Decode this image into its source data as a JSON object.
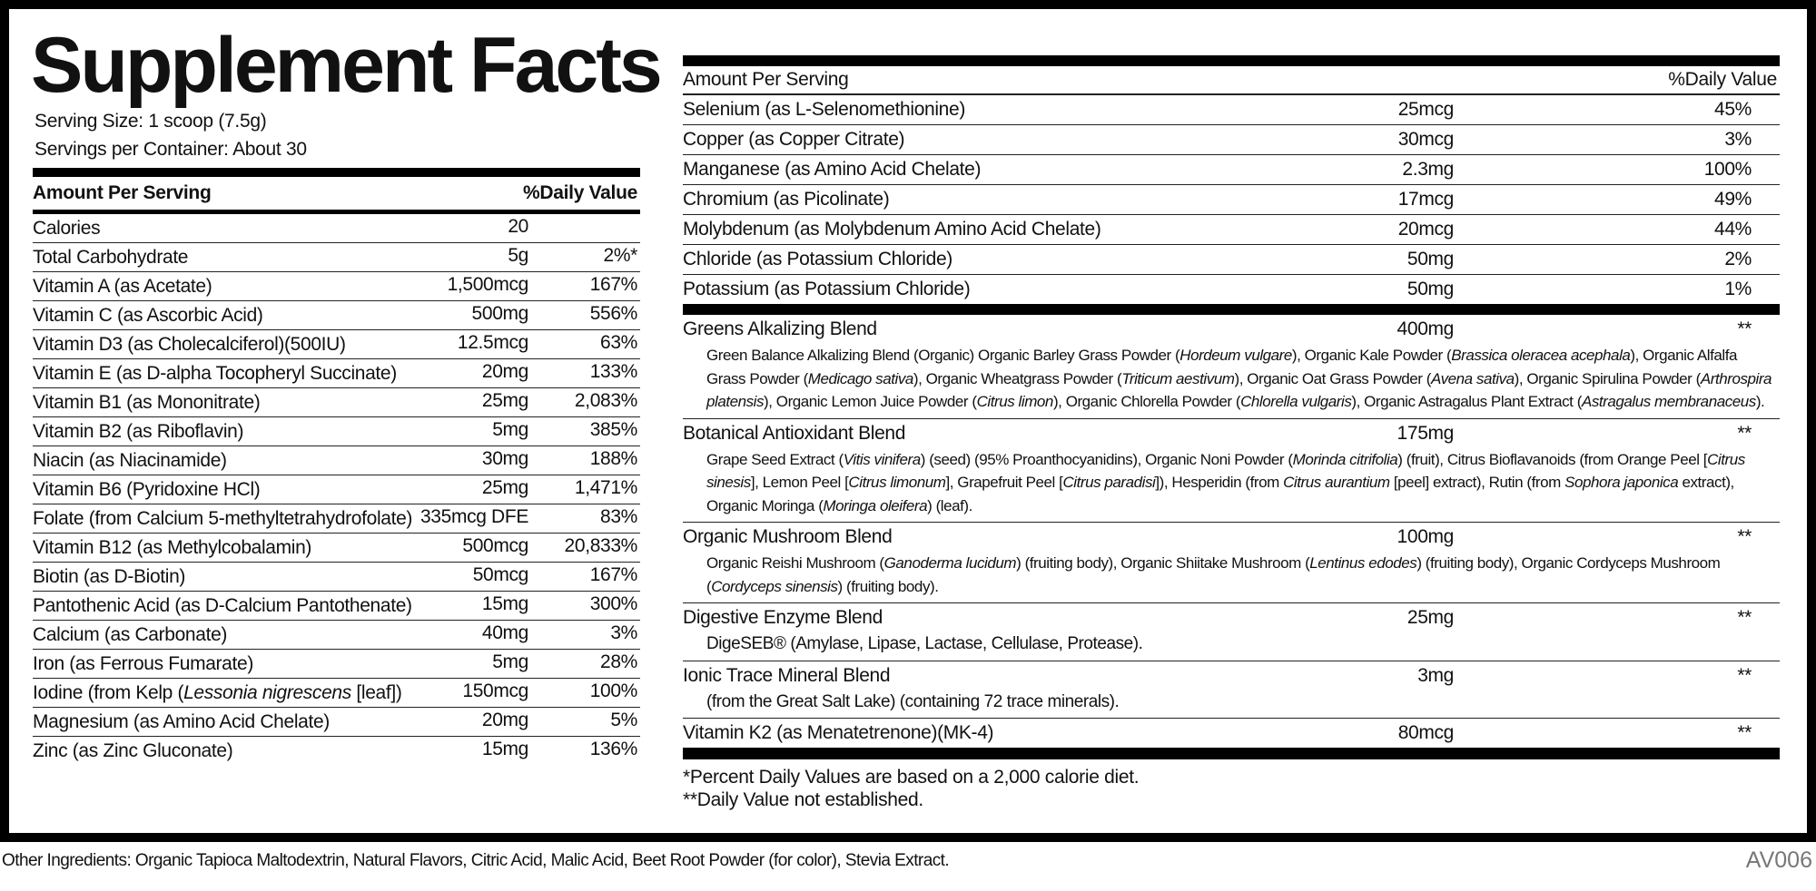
{
  "title": "Supplement Facts",
  "serving_size": "Serving Size: 1 scoop (7.5g)",
  "servings_per_container": "Servings per Container: About 30",
  "left_table": {
    "header": [
      "Amount Per Serving",
      "%Daily Value"
    ],
    "rows": [
      {
        "name": "Calories",
        "amount": "20"
      },
      {
        "name": "Total Carbohydrate",
        "amount": "5g",
        "dv": "2%*"
      },
      {
        "name": "Vitamin A (as Acetate)",
        "amount": "1,500mcg",
        "dv": "167%"
      },
      {
        "name": "Vitamin C (as Ascorbic Acid)",
        "amount": "500mg",
        "dv": "556%"
      },
      {
        "name": "Vitamin D3 (as Cholecalciferol)(500IU)",
        "amount": "12.5mcg",
        "dv": "63%"
      },
      {
        "name": "Vitamin E (as D-alpha Tocopheryl Succinate)",
        "amount": "20mg",
        "dv": "133%"
      },
      {
        "name": "Vitamin B1 (as Mononitrate)",
        "amount": "25mg",
        "dv": "2,083%"
      },
      {
        "name": "Vitamin B2 (as Riboflavin)",
        "amount": "5mg",
        "dv": "385%"
      },
      {
        "name": "Niacin (as Niacinamide)",
        "amount": "30mg",
        "dv": "188%"
      },
      {
        "name": "Vitamin B6 (Pyridoxine HCl)",
        "amount": "25mg",
        "dv": "1,471%"
      },
      {
        "name": "Folate (from Calcium 5-methyltetrahydrofolate)",
        "amount": "335mcg DFE",
        "dv": "83%"
      },
      {
        "name": "Vitamin B12 (as Methylcobalamin)",
        "amount": "500mcg",
        "dv": "20,833%"
      },
      {
        "name": "Biotin (as D-Biotin)",
        "amount": "50mcg",
        "dv": "167%"
      },
      {
        "name": "Pantothenic Acid (as D-Calcium Pantothenate)",
        "amount": "15mg",
        "dv": "300%"
      },
      {
        "name": "Calcium (as Carbonate)",
        "amount": "40mg",
        "dv": "3%"
      },
      {
        "name": "Iron (as Ferrous Fumarate)",
        "amount": "5mg",
        "dv": "28%"
      },
      {
        "name": [
          {
            "t": "Iodine (from Kelp ("
          },
          {
            "t": "Lessonia nigrescens",
            "i": true
          },
          {
            "t": " [leaf])"
          }
        ],
        "amount": "150mcg",
        "dv": "100%"
      },
      {
        "name": "Magnesium (as Amino Acid Chelate)",
        "amount": "20mg",
        "dv": "5%"
      },
      {
        "name": "Zinc (as Zinc Gluconate)",
        "amount": "15mg",
        "dv": "136%"
      }
    ]
  },
  "right_table": {
    "header": [
      "Amount Per Serving",
      "%Daily Value"
    ],
    "rows": [
      {
        "name": "Selenium (as L-Selenomethionine)",
        "amount": "25mcg",
        "dv": "45%"
      },
      {
        "name": "Copper (as Copper Citrate)",
        "amount": "30mcg",
        "dv": "3%"
      },
      {
        "name": "Manganese (as Amino Acid Chelate)",
        "amount": "2.3mg",
        "dv": "100%"
      },
      {
        "name": "Chromium (as Picolinate)",
        "amount": "17mcg",
        "dv": "49%"
      },
      {
        "name": "Molybdenum (as Molybdenum Amino Acid Chelate)",
        "amount": "20mcg",
        "dv": "44%"
      },
      {
        "name": "Chloride (as Potassium Chloride)",
        "amount": "50mg",
        "dv": "2%"
      },
      {
        "name": "Potassium (as Potassium Chloride)",
        "amount": "50mg",
        "dv": "1%"
      }
    ],
    "blends": [
      {
        "name": "Greens Alkalizing Blend",
        "amount": "400mg",
        "dv": "**",
        "description": [
          {
            "t": "Green Balance Alkalizing Blend (Organic) Organic Barley Grass Powder ("
          },
          {
            "t": "Hordeum vulgare",
            "i": true
          },
          {
            "t": "), Organic Kale Powder ("
          },
          {
            "t": "Brassica oleracea acephala",
            "i": true
          },
          {
            "t": "), Organic Alfalfa Grass Powder ("
          },
          {
            "t": "Medicago sativa",
            "i": true
          },
          {
            "t": "), Organic Wheatgrass Powder ("
          },
          {
            "t": "Triticum aestivum",
            "i": true
          },
          {
            "t": "), Organic Oat Grass Powder ("
          },
          {
            "t": "Avena sativa",
            "i": true
          },
          {
            "t": "), Organic Spirulina Powder ("
          },
          {
            "t": "Arthrospira platensis",
            "i": true
          },
          {
            "t": "), Organic Lemon Juice Powder ("
          },
          {
            "t": "Citrus limon",
            "i": true
          },
          {
            "t": "), Organic Chlorella Powder ("
          },
          {
            "t": "Chlorella vulgaris",
            "i": true
          },
          {
            "t": "), Organic Astragalus Plant Extract ("
          },
          {
            "t": "Astragalus membranaceus",
            "i": true
          },
          {
            "t": ")."
          }
        ]
      },
      {
        "name": "Botanical Antioxidant Blend",
        "amount": "175mg",
        "dv": "**",
        "description": [
          {
            "t": "Grape Seed Extract ("
          },
          {
            "t": "Vitis vinifera",
            "i": true
          },
          {
            "t": ") (seed) (95% Proanthocyanidins), Organic Noni Powder ("
          },
          {
            "t": "Morinda citrifolia",
            "i": true
          },
          {
            "t": ") (fruit), Citrus Bioflavanoids (from Orange Peel ["
          },
          {
            "t": "Citrus sinesis",
            "i": true
          },
          {
            "t": "], Lemon Peel ["
          },
          {
            "t": "Citrus limonum",
            "i": true
          },
          {
            "t": "], Grapefruit Peel ["
          },
          {
            "t": "Citrus paradisi",
            "i": true
          },
          {
            "t": "]), Hesperidin (from "
          },
          {
            "t": "Citrus aurantium",
            "i": true
          },
          {
            "t": " [peel] extract), Rutin (from "
          },
          {
            "t": "Sophora japonica",
            "i": true
          },
          {
            "t": " extract), Organic Moringa ("
          },
          {
            "t": "Moringa oleifera",
            "i": true
          },
          {
            "t": ") (leaf)."
          }
        ]
      },
      {
        "name": "Organic Mushroom Blend",
        "amount": "100mg",
        "dv": "**",
        "description": [
          {
            "t": "Organic Reishi Mushroom ("
          },
          {
            "t": "Ganoderma lucidum",
            "i": true
          },
          {
            "t": ") (fruiting body), Organic Shiitake Mushroom ("
          },
          {
            "t": "Lentinus edodes",
            "i": true
          },
          {
            "t": ") (fruiting body), Organic Cordyceps Mushroom ("
          },
          {
            "t": "Cordyceps sinensis",
            "i": true
          },
          {
            "t": ") (fruiting body)."
          }
        ]
      },
      {
        "name": "Digestive Enzyme Blend",
        "amount": "25mg",
        "dv": "**",
        "description": [
          {
            "t": "DigeSEB® (Amylase, Lipase, Lactase, Cellulase, Protease)."
          }
        ]
      },
      {
        "name": "Ionic Trace Mineral Blend",
        "amount": "3mg",
        "dv": "**",
        "description": [
          {
            "t": "(from the Great Salt Lake) (containing 72 trace minerals)."
          }
        ]
      },
      {
        "name": "Vitamin K2 (as Menatetrenone)(MK-4)",
        "amount": "80mcg",
        "dv": "**"
      }
    ]
  },
  "footnotes": [
    "*Percent Daily Values are based on a 2,000 calorie diet.",
    "**Daily Value not established."
  ],
  "other_ingredients": "Other Ingredients: Organic Tapioca Maltodextrin, Natural Flavors, Citric Acid, Malic Acid, Beet Root Powder (for color), Stevia Extract.",
  "code": "AV006"
}
